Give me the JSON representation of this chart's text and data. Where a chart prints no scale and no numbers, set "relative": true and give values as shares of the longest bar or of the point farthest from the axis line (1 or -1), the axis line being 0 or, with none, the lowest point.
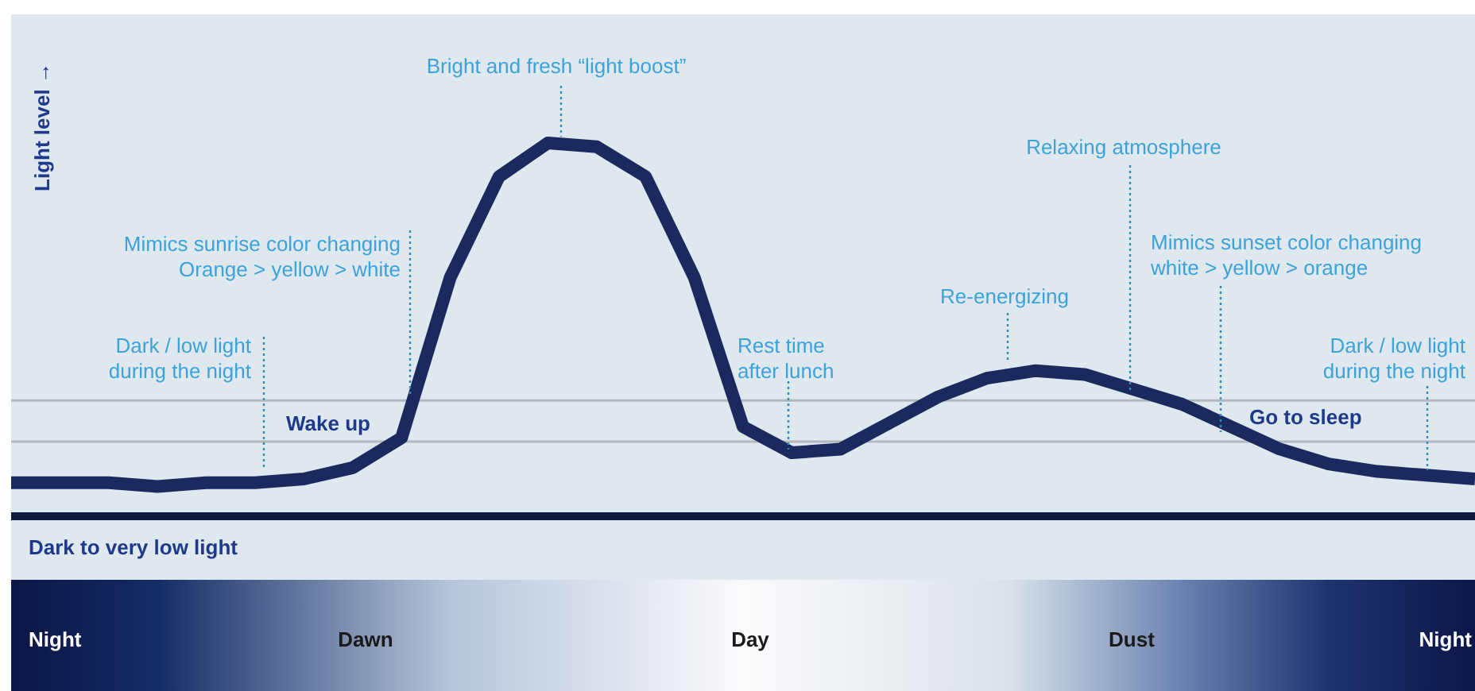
{
  "chart_data": {
    "type": "line",
    "relative": true,
    "ylabel": "Light level →",
    "categories": [
      null,
      null,
      null,
      null,
      null,
      null,
      null,
      null,
      null,
      null,
      null,
      null,
      null,
      null,
      null,
      null,
      null,
      null,
      null,
      null,
      null,
      null,
      null,
      null,
      null,
      null,
      null,
      null,
      null,
      null,
      null
    ],
    "series": [
      {
        "values": [
          0.09,
          0.09,
          0.09,
          0.08,
          0.09,
          0.09,
          0.1,
          0.13,
          0.21,
          0.64,
          0.91,
          1.0,
          0.99,
          0.91,
          0.64,
          0.24,
          0.17,
          0.18,
          0.25,
          0.32,
          0.37,
          0.39,
          0.38,
          0.34,
          0.3,
          0.24,
          0.18,
          0.14,
          0.12,
          0.11,
          0.1
        ],
        "color": "#1b2a5e"
      }
    ],
    "ref_lines": [
      {
        "axis": "y",
        "value": 0.31,
        "color": "#b4b8c0"
      },
      {
        "axis": "y",
        "value": 0.2,
        "color": "#b4b8c0"
      }
    ],
    "annotations": [
      "Bright and fresh “light boost”",
      "Mimics sunrise color changing\nOrange > yellow > white",
      "Dark / low light\nduring the night",
      "Wake up",
      "Rest time\nafter lunch",
      "Re-energizing",
      "Relaxing atmosphere",
      "Mimics sunset color changing\nwhite > yellow > orange",
      "Go to sleep",
      "Dark / low light\nduring the night",
      "Dark to very low light",
      "Night",
      "Dawn",
      "Day",
      "Dust",
      "Night"
    ]
  }
}
